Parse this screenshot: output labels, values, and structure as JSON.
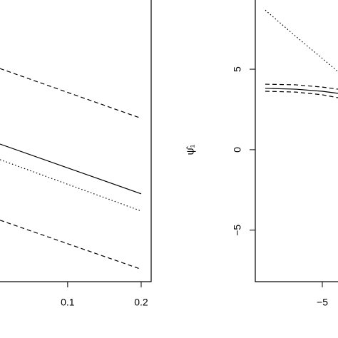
{
  "chart_data": [
    {
      "type": "line",
      "xlim": [
        0.008,
        0.2136
      ],
      "ylim": [
        -8.2,
        9.3
      ],
      "xticks": [
        0.1,
        0.2
      ],
      "series": [
        {
          "color": "#000000",
          "dash": "solid",
          "x": [
            0.008,
            0.2
          ],
          "values": [
            0.35,
            -2.74
          ]
        },
        {
          "color": "#000000",
          "dash": "dashed",
          "x": [
            0.008,
            0.2
          ],
          "values": [
            5.04,
            1.95
          ]
        },
        {
          "color": "#000000",
          "dash": "dotted",
          "x": [
            0.008,
            0.2
          ],
          "values": [
            -0.62,
            -3.81
          ]
        },
        {
          "color": "#000000",
          "dash": "dashed",
          "x": [
            0.008,
            0.2
          ],
          "values": [
            -4.38,
            -7.43
          ]
        }
      ]
    },
    {
      "type": "line",
      "ylabel": "ψ̂₁",
      "xlim": [
        -8.76,
        -4.12
      ],
      "ylim": [
        -8.2,
        9.3
      ],
      "xticks": [
        {
          "value": -5,
          "label": "−5"
        }
      ],
      "yticks": [
        {
          "value": -5,
          "label": "−5"
        },
        0,
        5
      ],
      "series": [
        {
          "color": "#000000",
          "dash": "dotted",
          "x": [
            -8.2,
            -6.5,
            -5,
            -4.12
          ],
          "values": [
            8.67,
            7.05,
            5.67,
            4.85
          ]
        },
        {
          "color": "#000000",
          "dash": "solid",
          "x": [
            -8.2,
            -6.5,
            -5,
            -4.12
          ],
          "values": [
            3.81,
            3.76,
            3.63,
            3.5
          ]
        },
        {
          "color": "#000000",
          "dash": "dashed",
          "x": [
            -8.2,
            -6.5,
            -5,
            -4.12
          ],
          "values": [
            4.07,
            4.03,
            3.89,
            3.76
          ]
        },
        {
          "color": "#000000",
          "dash": "dashed",
          "x": [
            -8.2,
            -6.5,
            -5,
            -4.12
          ],
          "values": [
            3.63,
            3.58,
            3.41,
            3.23
          ]
        }
      ]
    }
  ]
}
